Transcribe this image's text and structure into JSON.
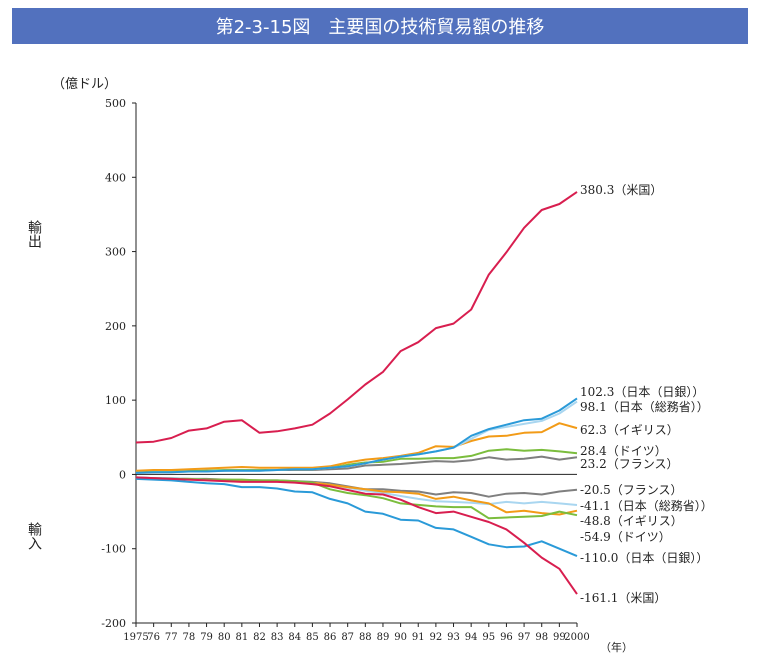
{
  "title": "第2-3-15図　主要国の技術貿易額の推移",
  "chart_data": {
    "type": "line",
    "unit_label": "（億ドル）",
    "xlabel": "（年）",
    "export_label": "輸出",
    "import_label": "輸入",
    "ylim": [
      -200,
      500
    ],
    "yticks": [
      "500",
      "400",
      "300",
      "200",
      "100",
      "0",
      "-100",
      "-200"
    ],
    "x": [
      1975,
      1976,
      1977,
      1978,
      1979,
      1980,
      1981,
      1982,
      1983,
      1984,
      1985,
      1986,
      1987,
      1988,
      1989,
      1990,
      1991,
      1992,
      1993,
      1994,
      1995,
      1996,
      1997,
      1998,
      1999,
      2000
    ],
    "xtick_labels": [
      "1975",
      "76",
      "77",
      "78",
      "79",
      "80",
      "81",
      "82",
      "83",
      "84",
      "85",
      "86",
      "87",
      "88",
      "89",
      "90",
      "91",
      "92",
      "93",
      "94",
      "95",
      "96",
      "97",
      "98",
      "99",
      "2000"
    ],
    "series": [
      {
        "name": "米国",
        "group": "export",
        "color": "#d81e4f",
        "label": "380.3（米国）",
        "values": [
          43,
          44,
          49,
          59,
          62,
          71,
          73,
          56,
          58,
          62,
          67,
          82,
          101,
          121,
          138,
          166,
          178,
          197,
          203,
          222,
          269,
          299,
          332,
          356,
          364,
          380.3
        ]
      },
      {
        "name": "日本（日銀）",
        "group": "export",
        "color": "#2a9ad8",
        "label": "102.3（日本（日銀））",
        "values": [
          2,
          3,
          3,
          4,
          4,
          5,
          5,
          5,
          6,
          7,
          7,
          9,
          11,
          15,
          20,
          24,
          27,
          31,
          36,
          52,
          61,
          67,
          73,
          75,
          86,
          102.3
        ]
      },
      {
        "name": "日本（総務省）",
        "group": "export",
        "color": "#a9d6f0",
        "label": "98.1（日本（総務省））",
        "values": [
          2,
          3,
          3,
          4,
          4,
          5,
          5,
          5,
          6,
          7,
          7,
          9,
          11,
          15,
          20,
          24,
          27,
          31,
          36,
          48,
          60,
          64,
          68,
          72,
          82,
          98.1
        ]
      },
      {
        "name": "イギリス",
        "group": "export",
        "color": "#f29b17",
        "label": "62.3（イギリス）",
        "values": [
          5,
          6,
          6,
          7,
          8,
          9,
          10,
          9,
          9,
          9,
          9,
          11,
          16,
          20,
          22,
          25,
          29,
          38,
          37,
          45,
          51,
          52,
          56,
          57,
          69,
          62.3
        ]
      },
      {
        "name": "ドイツ",
        "group": "export",
        "color": "#7bbd3d",
        "label": "28.4（ドイツ）",
        "values": [
          3,
          4,
          4,
          5,
          5,
          6,
          6,
          6,
          6,
          7,
          7,
          9,
          13,
          16,
          17,
          21,
          21,
          22,
          22,
          25,
          32,
          34,
          32,
          33,
          31,
          28.4
        ]
      },
      {
        "name": "フランス",
        "group": "export",
        "color": "#7f7f7f",
        "label": "23.2（フランス）",
        "values": [
          2,
          3,
          4,
          4,
          5,
          5,
          6,
          6,
          6,
          6,
          6,
          7,
          8,
          12,
          13,
          14,
          16,
          18,
          17,
          19,
          23,
          20,
          21,
          24,
          20,
          23.2
        ]
      },
      {
        "name": "フランス",
        "group": "import",
        "color": "#7f7f7f",
        "label": "-20.5（フランス）",
        "values": [
          -4,
          -5,
          -5,
          -6,
          -6,
          -7,
          -8,
          -8,
          -8,
          -9,
          -10,
          -12,
          -16,
          -20,
          -20,
          -22,
          -23,
          -27,
          -24,
          -25,
          -30,
          -26,
          -25,
          -27,
          -23,
          -20.5
        ]
      },
      {
        "name": "日本（総務省）",
        "group": "import",
        "color": "#a9d6f0",
        "label": "-41.1（日本（総務省））",
        "values": [
          -4,
          -5,
          -5,
          -6,
          -7,
          -8,
          -8,
          -9,
          -9,
          -10,
          -11,
          -14,
          -18,
          -22,
          -25,
          -29,
          -33,
          -36,
          -37,
          -38,
          -40,
          -37,
          -39,
          -37,
          -39,
          -41.1
        ]
      },
      {
        "name": "イギリス",
        "group": "import",
        "color": "#f29b17",
        "label": "-48.8（イギリス）",
        "values": [
          -5,
          -6,
          -6,
          -7,
          -7,
          -8,
          -8,
          -8,
          -9,
          -10,
          -11,
          -14,
          -17,
          -20,
          -23,
          -24,
          -26,
          -33,
          -30,
          -35,
          -39,
          -51,
          -49,
          -52,
          -54,
          -48.8
        ]
      },
      {
        "name": "ドイツ",
        "group": "import",
        "color": "#7bbd3d",
        "label": "-54.9（ドイツ）",
        "values": [
          -5,
          -5,
          -6,
          -6,
          -7,
          -7,
          -7,
          -8,
          -8,
          -9,
          -11,
          -20,
          -25,
          -28,
          -32,
          -39,
          -41,
          -43,
          -44,
          -44,
          -59,
          -58,
          -57,
          -56,
          -50,
          -54.9
        ]
      },
      {
        "name": "日本（日銀）",
        "group": "import",
        "color": "#2a9ad8",
        "label": "-110.0（日本（日銀））",
        "values": [
          -6,
          -7,
          -8,
          -10,
          -12,
          -13,
          -17,
          -17,
          -19,
          -23,
          -24,
          -33,
          -39,
          -50,
          -53,
          -61,
          -62,
          -72,
          -74,
          -84,
          -94,
          -98,
          -97,
          -90,
          -100,
          -110.0
        ]
      },
      {
        "name": "米国",
        "group": "import",
        "color": "#d81e4f",
        "label": "-161.1（米国）",
        "values": [
          -4,
          -5,
          -6,
          -7,
          -8,
          -9,
          -10,
          -10,
          -10,
          -11,
          -13,
          -16,
          -21,
          -26,
          -27,
          -34,
          -44,
          -52,
          -50,
          -57,
          -64,
          -74,
          -92,
          -112,
          -127,
          -161.1
        ]
      }
    ]
  }
}
